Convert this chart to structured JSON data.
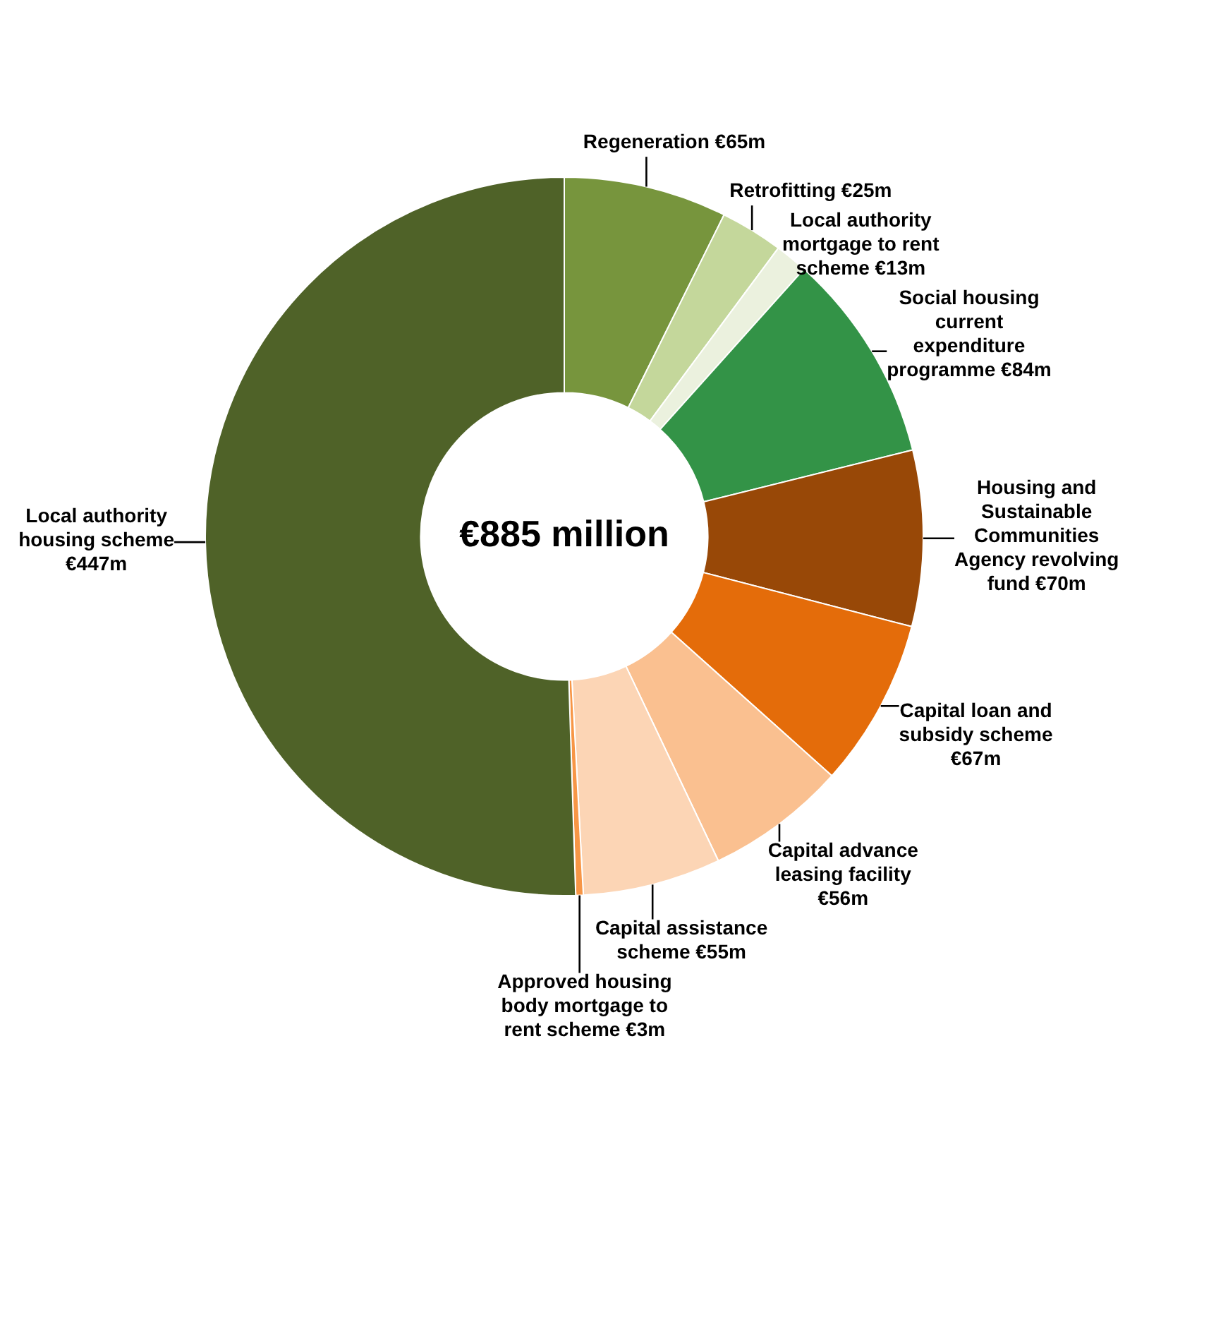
{
  "chart_data": {
    "type": "donut",
    "title": "€885 million",
    "categories": [
      "Regeneration",
      "Retrofitting",
      "Local authority mortgage to rent scheme",
      "Social housing current expenditure programme",
      "Housing and Sustainable Communities Agency revolving fund",
      "Capital loan and subsidy scheme",
      "Capital advance leasing facility",
      "Capital assistance scheme",
      "Approved housing body mortgage to rent scheme",
      "Local authority housing scheme"
    ],
    "values": [
      65,
      25,
      13,
      84,
      70,
      67,
      56,
      55,
      3,
      447
    ],
    "value_labels": [
      "€65m",
      "€25m",
      "€13m",
      "€84m",
      "€70m",
      "€67m",
      "€56m",
      "€55m",
      "€3m",
      "€447m"
    ],
    "colors": [
      "#77953d",
      "#c4d79b",
      "#ebf1de",
      "#339347",
      "#984807",
      "#e46c0a",
      "#fac090",
      "#fcd5b5",
      "#f79646",
      "#4f6228"
    ]
  }
}
